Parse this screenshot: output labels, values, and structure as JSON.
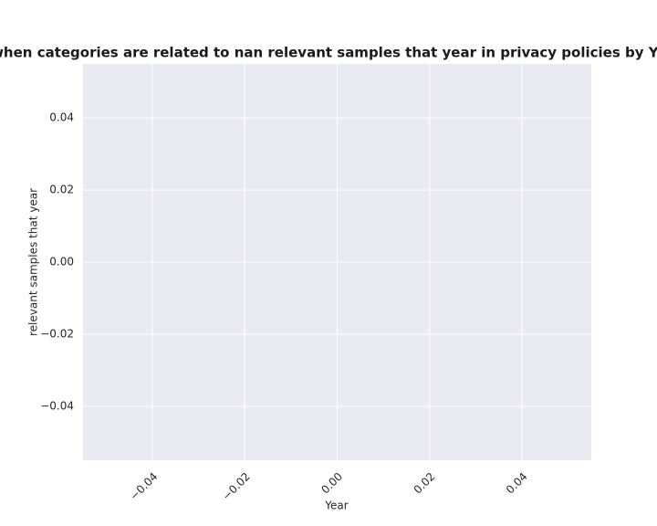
{
  "chart_data": {
    "type": "line",
    "title": "when categories are related to nan relevant samples that year in privacy policies by Year",
    "x_label": "Year",
    "y_label": "relevant samples that year",
    "x": [],
    "series": [],
    "xlim": [
      -0.055,
      0.055
    ],
    "xticks": [
      {
        "value": -0.04,
        "label": "−0.04"
      },
      {
        "value": -0.02,
        "label": "−0.02"
      },
      {
        "value": 0,
        "label": "0.00"
      },
      0.02,
      0.04
    ],
    "ylim": [
      -0.055,
      0.055
    ],
    "yticks": [
      {
        "value": -0.04,
        "label": "−0.04"
      },
      {
        "value": -0.02,
        "label": "−0.02"
      },
      {
        "value": 0,
        "label": "0.00"
      },
      0.02,
      0.04
    ],
    "grid": true,
    "background": "#eaeaf2",
    "grid_color": "#ffffff"
  }
}
